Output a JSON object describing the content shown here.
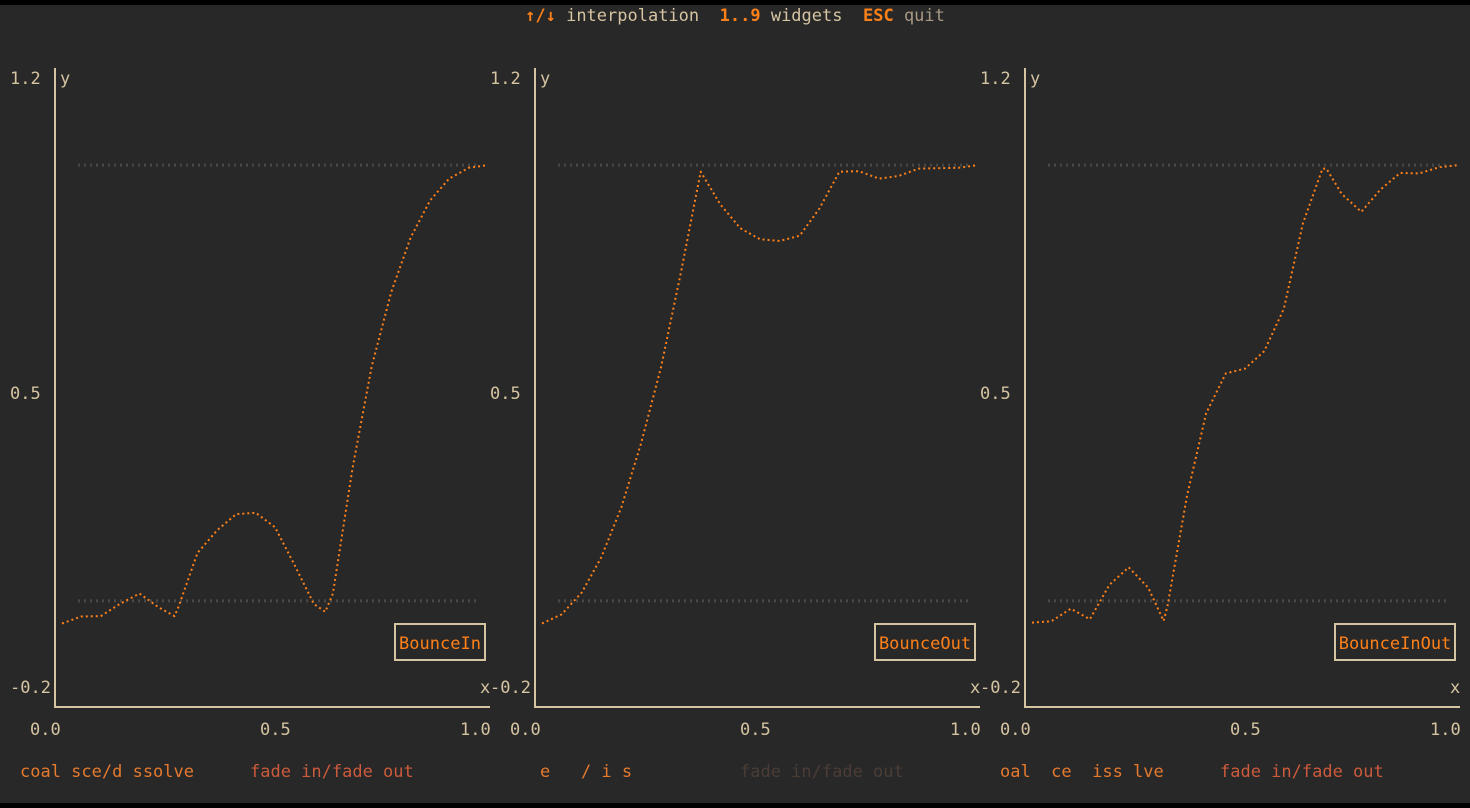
{
  "help_bar": {
    "arrows_key": "↑/↓",
    "arrows_desc": "interpolation",
    "digits_key": "1..9",
    "digits_desc": "widgets",
    "esc_key": "ESC",
    "esc_desc": "quit"
  },
  "colors": {
    "background": "#282828",
    "accent": "#fe8019",
    "axis": "#d5c4a1",
    "reference_dots": "#4a4846",
    "footer_orange": "#e5792d",
    "footer_red": "#cc5a3c",
    "footer_faded": "#4a3d36"
  },
  "chart_data": [
    {
      "type": "line",
      "title": "",
      "legend": "BounceIn",
      "xlabel": "x",
      "ylabel": "y",
      "xlim": [
        0.0,
        1.0
      ],
      "ylim": [
        -0.2,
        1.2
      ],
      "x_tick_labels": [
        "0.0",
        "0.5",
        "1.0"
      ],
      "y_tick_labels": [
        "1.2",
        "0.5",
        "-0.2"
      ],
      "reference_lines_y": [
        1.0,
        0.0
      ],
      "x": [
        0.0,
        0.045,
        0.091,
        0.136,
        0.182,
        0.227,
        0.264,
        0.273,
        0.318,
        0.364,
        0.409,
        0.455,
        0.5,
        0.545,
        0.591,
        0.618,
        0.636,
        0.682,
        0.727,
        0.773,
        0.818,
        0.864,
        0.909,
        0.955,
        1.0
      ],
      "y": [
        -0.052,
        -0.036,
        -0.035,
        -0.007,
        0.017,
        -0.015,
        -0.035,
        -0.015,
        0.11,
        0.162,
        0.199,
        0.202,
        0.169,
        0.084,
        -0.007,
        -0.025,
        0.017,
        0.304,
        0.538,
        0.709,
        0.833,
        0.919,
        0.969,
        0.994,
        1.0
      ]
    },
    {
      "type": "line",
      "title": "",
      "legend": "BounceOut",
      "xlabel": "x",
      "ylabel": "y",
      "xlim": [
        0.0,
        1.0
      ],
      "ylim": [
        -0.2,
        1.2
      ],
      "x_tick_labels": [
        "0.0",
        "0.5",
        "1.0"
      ],
      "y_tick_labels": [
        "1.2",
        "0.5",
        "-0.2"
      ],
      "reference_lines_y": [
        1.0,
        0.0
      ],
      "x": [
        0.0,
        0.045,
        0.091,
        0.136,
        0.182,
        0.227,
        0.273,
        0.318,
        0.364,
        0.409,
        0.455,
        0.5,
        0.545,
        0.591,
        0.636,
        0.682,
        0.727,
        0.773,
        0.818,
        0.864,
        0.909,
        0.955,
        1.0
      ],
      "y": [
        -0.052,
        -0.031,
        0.019,
        0.1,
        0.215,
        0.361,
        0.536,
        0.75,
        0.985,
        0.91,
        0.855,
        0.83,
        0.826,
        0.838,
        0.9,
        0.985,
        0.986,
        0.969,
        0.975,
        0.992,
        0.993,
        0.994,
        1.0
      ]
    },
    {
      "type": "line",
      "title": "",
      "legend": "BounceInOut",
      "xlabel": "x",
      "ylabel": "y",
      "xlim": [
        0.0,
        1.0
      ],
      "ylim": [
        -0.2,
        1.2
      ],
      "x_tick_labels": [
        "0.0",
        "0.5",
        "1.0"
      ],
      "y_tick_labels": [
        "1.2",
        "0.5",
        "-0.2"
      ],
      "reference_lines_y": [
        1.0,
        0.0
      ],
      "x": [
        0.0,
        0.045,
        0.091,
        0.136,
        0.182,
        0.227,
        0.273,
        0.309,
        0.318,
        0.364,
        0.409,
        0.455,
        0.5,
        0.545,
        0.591,
        0.636,
        0.682,
        0.691,
        0.727,
        0.773,
        0.818,
        0.864,
        0.909,
        0.955,
        1.0
      ],
      "y": [
        -0.05,
        -0.047,
        -0.018,
        -0.042,
        0.037,
        0.077,
        0.03,
        -0.046,
        -0.012,
        0.242,
        0.431,
        0.522,
        0.533,
        0.573,
        0.67,
        0.866,
        0.992,
        0.992,
        0.934,
        0.893,
        0.944,
        0.982,
        0.981,
        0.995,
        1.0
      ]
    }
  ],
  "footer": [
    {
      "left_text": "coal sce/d ssolve",
      "right_text": "fade in/fade out",
      "left_color": "#e5792d",
      "right_color": "#cc5a3c"
    },
    {
      "left_text": "e   / i s",
      "right_text": "fade in/fade out",
      "left_color": "#e5792d",
      "right_color": "#4a3d36"
    },
    {
      "left_text": "oal  ce  iss lve",
      "right_text": "fade in/fade out",
      "left_color": "#e5792d",
      "right_color": "#cc5a3c"
    }
  ]
}
